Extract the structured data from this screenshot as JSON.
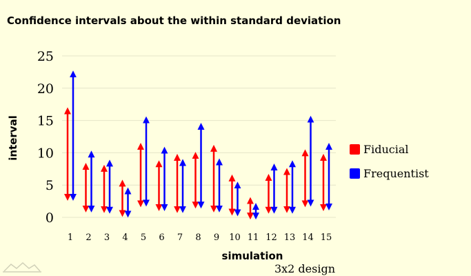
{
  "chart_data": {
    "type": "interval",
    "title": "Confidence intervals about the within standard deviation",
    "xlabel": "simulation",
    "ylabel": "interval",
    "subtitle": "3x2 design",
    "ylim": [
      0,
      25
    ],
    "yticks": [
      "0",
      "5",
      "10",
      "15",
      "20",
      "25"
    ],
    "ytick_values": [
      0,
      5,
      10,
      15,
      20,
      25
    ],
    "categories": [
      "1",
      "2",
      "3",
      "4",
      "5",
      "6",
      "7",
      "8",
      "9",
      "10",
      "11",
      "12",
      "13",
      "14",
      "15"
    ],
    "series": [
      {
        "name": "Fiducial",
        "color": "#ff0000",
        "lower": [
          3.1,
          1.3,
          1.2,
          0.6,
          2.1,
          1.5,
          1.2,
          1.9,
          1.3,
          0.8,
          0.2,
          1.1,
          1.2,
          2.1,
          1.5
        ],
        "upper": [
          16.5,
          7.9,
          7.6,
          5.3,
          11.0,
          8.3,
          9.3,
          9.6,
          10.7,
          6.1,
          2.6,
          6.2,
          7.1,
          10.0,
          9.3
        ]
      },
      {
        "name": "Frequentist",
        "color": "#0000ff",
        "lower": [
          3.1,
          1.3,
          1.1,
          0.5,
          2.2,
          1.5,
          1.2,
          1.9,
          1.3,
          0.7,
          0.2,
          1.1,
          1.1,
          2.2,
          1.6
        ],
        "upper": [
          22.2,
          9.8,
          8.4,
          4.1,
          15.1,
          10.4,
          8.5,
          14.1,
          8.6,
          5.0,
          1.7,
          7.8,
          8.3,
          15.2,
          11.0
        ]
      }
    ]
  }
}
